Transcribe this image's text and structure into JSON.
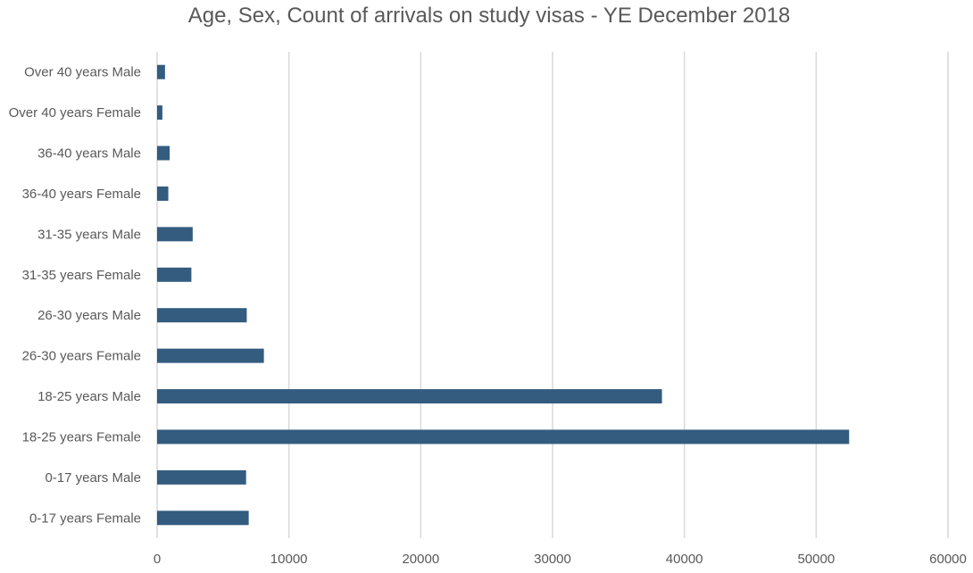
{
  "chart_data": {
    "type": "bar",
    "orientation": "horizontal",
    "title": "Age, Sex, Count of arrivals on study visas - YE December 2018",
    "xlabel": "",
    "ylabel": "",
    "categories": [
      "0-17 years Female",
      "0-17 years Male",
      "18-25 years Female",
      "18-25 years Male",
      "26-30 years Female",
      "26-30 years Male",
      "31-35 years Female",
      "31-35 years Male",
      "36-40 years Female",
      "36-40 years Male",
      "Over 40 years Female",
      "Over 40 years Male"
    ],
    "values": [
      6950,
      6750,
      52500,
      38300,
      8100,
      6800,
      2600,
      2700,
      850,
      950,
      400,
      600
    ],
    "xlim": [
      0,
      60000
    ],
    "xticks": [
      "0",
      "10000",
      "20000",
      "30000",
      "40000",
      "50000",
      "60000"
    ],
    "xtick_values": [
      0,
      10000,
      20000,
      30000,
      40000,
      50000,
      60000
    ],
    "grid": "vertical",
    "legend": "none",
    "bar_color": "#335C7F",
    "grid_color": "#D9D9D9"
  }
}
